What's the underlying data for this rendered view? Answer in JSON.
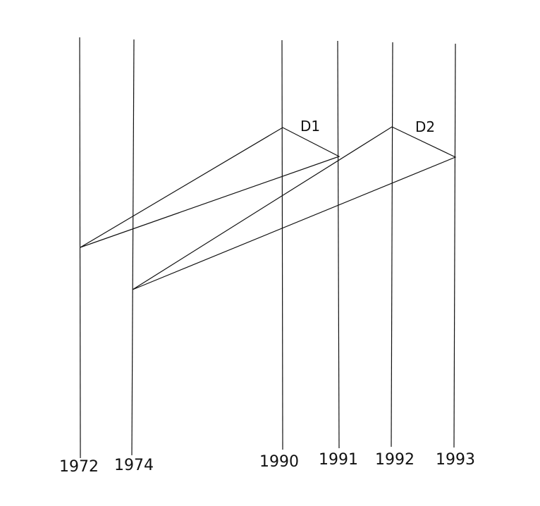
{
  "diagram": {
    "years": [
      "1972",
      "1974",
      "1990",
      "1991",
      "1992",
      "1993"
    ],
    "triangles": [
      {
        "label": "D1",
        "apex_year": "1990",
        "right_year": "1991",
        "left_year": "1972"
      },
      {
        "label": "D2",
        "apex_year": "1992",
        "right_year": "1993",
        "left_year": "1974"
      }
    ],
    "colors": {
      "line": "#111111",
      "background": "#ffffff"
    }
  }
}
